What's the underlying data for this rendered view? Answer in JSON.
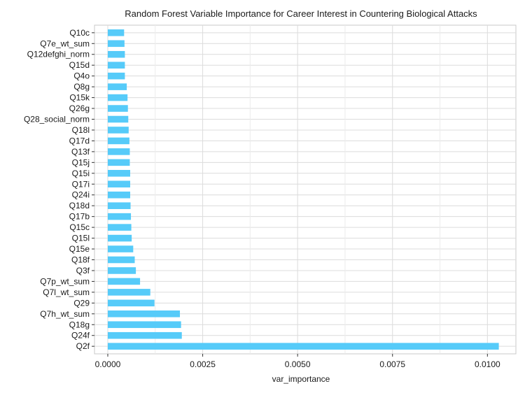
{
  "chart_data": {
    "type": "bar",
    "orientation": "horizontal",
    "title": "Random Forest Variable Importance for Career Interest in Countering Biological Attacks",
    "xlabel": "var_importance",
    "ylabel": "",
    "xlim": [
      -0.00035,
      0.01075
    ],
    "xticks": [
      0.0,
      0.0025,
      0.005,
      0.0075,
      0.01
    ],
    "xtick_labels": [
      "0.0000",
      "0.0025",
      "0.0050",
      "0.0075",
      "0.0100"
    ],
    "grid": true,
    "legend": "none",
    "bar_color": "#56cbf9",
    "categories": [
      "Q10c",
      "Q7e_wt_sum",
      "Q12defghi_norm",
      "Q15d",
      "Q4o",
      "Q8g",
      "Q15k",
      "Q26g",
      "Q28_social_norm",
      "Q18l",
      "Q17d",
      "Q13f",
      "Q15j",
      "Q15i",
      "Q17i",
      "Q24i",
      "Q18d",
      "Q17b",
      "Q15c",
      "Q15l",
      "Q15e",
      "Q18f",
      "Q3f",
      "Q7p_wt_sum",
      "Q7l_wt_sum",
      "Q29",
      "Q7h_wt_sum",
      "Q18g",
      "Q24f",
      "Q2f"
    ],
    "values": [
      0.00043,
      0.00044,
      0.00045,
      0.00045,
      0.00045,
      0.0005,
      0.00052,
      0.00053,
      0.00054,
      0.00055,
      0.00057,
      0.00058,
      0.00058,
      0.00059,
      0.00059,
      0.00059,
      0.0006,
      0.00061,
      0.00062,
      0.00063,
      0.00067,
      0.00071,
      0.00074,
      0.00085,
      0.00112,
      0.00123,
      0.0019,
      0.00193,
      0.00195,
      0.0103
    ]
  }
}
